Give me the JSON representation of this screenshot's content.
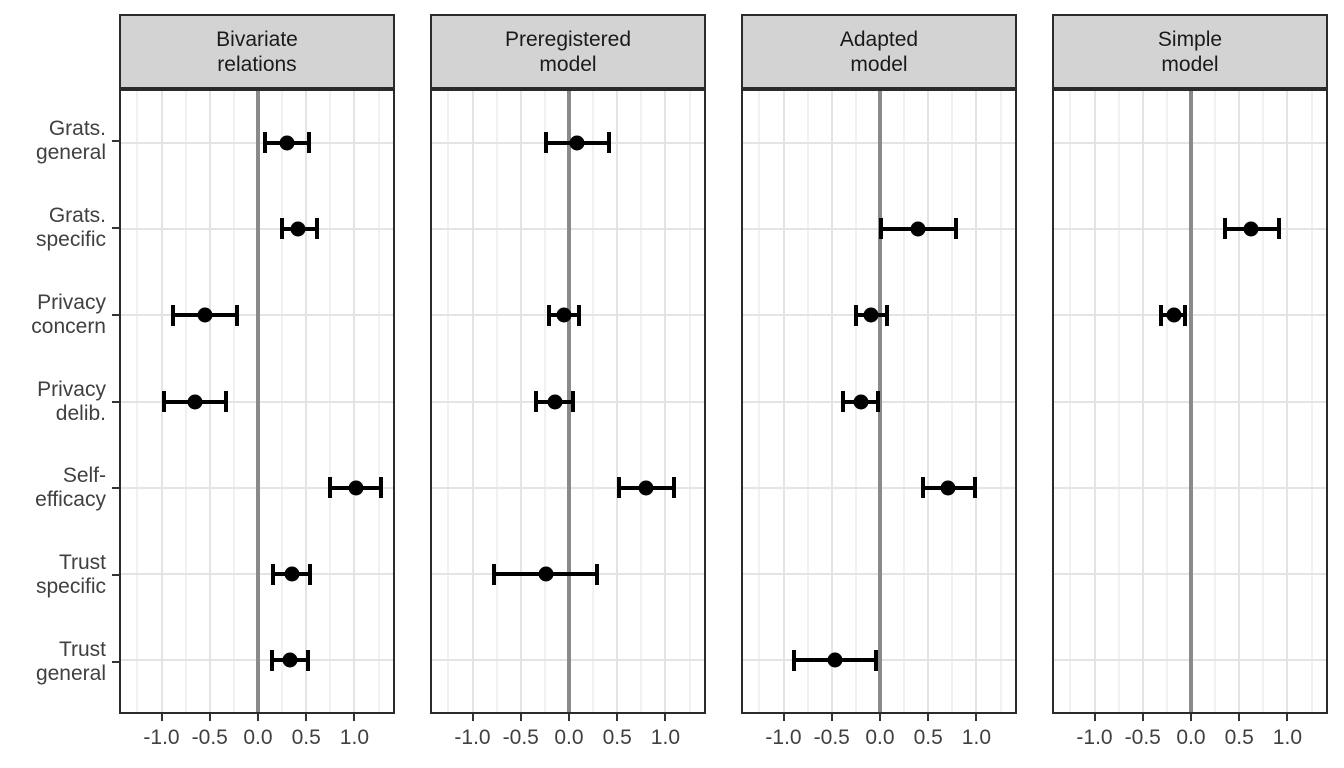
{
  "chart_data": {
    "type": "scatter",
    "variant": "faceted forest plot: point estimates with horizontal CI error bars",
    "title": "",
    "xlabel": "",
    "ylabel": "",
    "legend": "none",
    "grid": "on",
    "xlim": [
      -1.42,
      1.4
    ],
    "x_ticks": [
      "-1.0",
      "-0.5",
      "0.0",
      "0.5",
      "1.0"
    ],
    "x_tick_values": [
      -1.0,
      -0.5,
      0.0,
      0.5,
      1.0
    ],
    "x_minor_gridlines": [
      -1.25,
      -0.75,
      -0.25,
      0.25,
      0.75,
      1.25
    ],
    "reference_line_x": 0,
    "categories": [
      "Grats. general",
      "Grats. specific",
      "Privacy concern",
      "Privacy delib.",
      "Self-efficacy",
      "Trust specific",
      "Trust general"
    ],
    "category_lines": [
      [
        "Grats.",
        "general"
      ],
      [
        "Grats.",
        "specific"
      ],
      [
        "Privacy",
        "concern"
      ],
      [
        "Privacy",
        "delib."
      ],
      [
        "Self-",
        "efficacy"
      ],
      [
        "Trust",
        "specific"
      ],
      [
        "Trust",
        "general"
      ]
    ],
    "panels": [
      {
        "title": "Bivariate relations",
        "title_lines": [
          "Bivariate",
          "relations"
        ],
        "estimates": [
          {
            "category": "Grats. general",
            "est": 0.3,
            "lo": 0.07,
            "hi": 0.53
          },
          {
            "category": "Grats. specific",
            "est": 0.42,
            "lo": 0.25,
            "hi": 0.61
          },
          {
            "category": "Privacy concern",
            "est": -0.55,
            "lo": -0.88,
            "hi": -0.22
          },
          {
            "category": "Privacy delib.",
            "est": -0.65,
            "lo": -0.97,
            "hi": -0.33
          },
          {
            "category": "Self-efficacy",
            "est": 1.02,
            "lo": 0.75,
            "hi": 1.28
          },
          {
            "category": "Trust specific",
            "est": 0.35,
            "lo": 0.16,
            "hi": 0.54
          },
          {
            "category": "Trust general",
            "est": 0.33,
            "lo": 0.15,
            "hi": 0.52
          }
        ]
      },
      {
        "title": "Preregistered model",
        "title_lines": [
          "Preregistered",
          "model"
        ],
        "estimates": [
          {
            "category": "Grats. general",
            "est": 0.08,
            "lo": -0.24,
            "hi": 0.41
          },
          {
            "category": "Grats. specific",
            "est": null,
            "lo": null,
            "hi": null
          },
          {
            "category": "Privacy concern",
            "est": -0.05,
            "lo": -0.21,
            "hi": 0.1
          },
          {
            "category": "Privacy delib.",
            "est": -0.14,
            "lo": -0.34,
            "hi": 0.04
          },
          {
            "category": "Self-efficacy",
            "est": 0.8,
            "lo": 0.52,
            "hi": 1.09
          },
          {
            "category": "Trust specific",
            "est": -0.24,
            "lo": -0.78,
            "hi": 0.29
          },
          {
            "category": "Trust general",
            "est": null,
            "lo": null,
            "hi": null
          }
        ]
      },
      {
        "title": "Adapted model",
        "title_lines": [
          "Adapted",
          "model"
        ],
        "estimates": [
          {
            "category": "Grats. general",
            "est": null,
            "lo": null,
            "hi": null
          },
          {
            "category": "Grats. specific",
            "est": 0.39,
            "lo": 0.01,
            "hi": 0.79
          },
          {
            "category": "Privacy concern",
            "est": -0.09,
            "lo": -0.25,
            "hi": 0.07
          },
          {
            "category": "Privacy delib.",
            "est": -0.2,
            "lo": -0.38,
            "hi": -0.02
          },
          {
            "category": "Self-efficacy",
            "est": 0.71,
            "lo": 0.45,
            "hi": 0.99
          },
          {
            "category": "Trust specific",
            "est": null,
            "lo": null,
            "hi": null
          },
          {
            "category": "Trust general",
            "est": -0.47,
            "lo": -0.89,
            "hi": -0.04
          }
        ]
      },
      {
        "title": "Simple model",
        "title_lines": [
          "Simple",
          "model"
        ],
        "estimates": [
          {
            "category": "Grats. general",
            "est": null,
            "lo": null,
            "hi": null
          },
          {
            "category": "Grats. specific",
            "est": 0.62,
            "lo": 0.35,
            "hi": 0.91
          },
          {
            "category": "Privacy concern",
            "est": -0.18,
            "lo": -0.31,
            "hi": -0.06
          },
          {
            "category": "Privacy delib.",
            "est": null,
            "lo": null,
            "hi": null
          },
          {
            "category": "Self-efficacy",
            "est": null,
            "lo": null,
            "hi": null
          },
          {
            "category": "Trust specific",
            "est": null,
            "lo": null,
            "hi": null
          },
          {
            "category": "Trust general",
            "est": null,
            "lo": null,
            "hi": null
          }
        ]
      }
    ],
    "colors": {
      "background": "#ffffff",
      "strip_bg": "#d3d3d3",
      "strip_text": "#1a1a1a",
      "panel_border": "#2b2b2b",
      "grid_major": "#e4e4e4",
      "grid_minor": "#f1f1f1",
      "reference_line": "#8a8a8a",
      "point": "#000000",
      "axis_text": "#404040",
      "tick": "#333333"
    }
  }
}
